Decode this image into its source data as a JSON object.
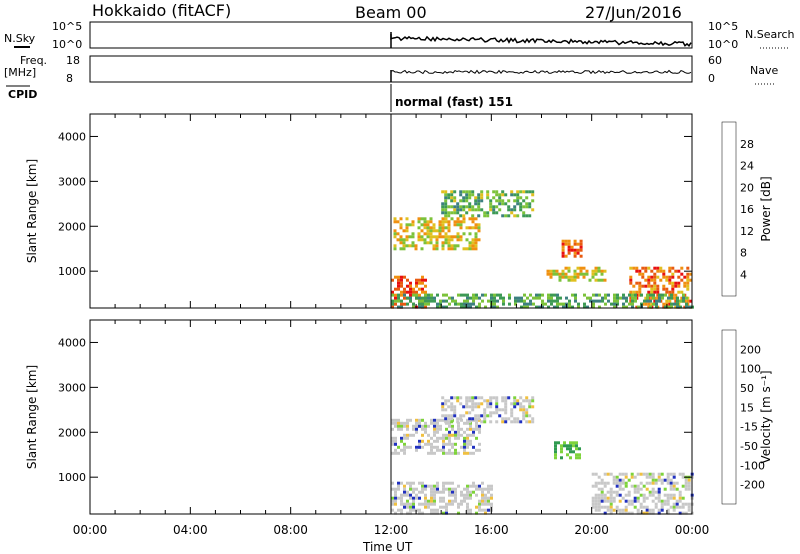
{
  "header": {
    "station": "Hokkaido (fitACF)",
    "beam": "Beam 00",
    "date": "27/Jun/2016"
  },
  "top_panels": {
    "nsky_label": "N.Sky",
    "nsearch_label": "N.Search",
    "noise_ticks_left": [
      "10^5",
      "10^0"
    ],
    "noise_ticks_right": [
      "10^5",
      "10^0"
    ],
    "freq_label_line1": "Freq.",
    "freq_label_line2": "[MHz]",
    "freq_ticks": [
      "18",
      "8"
    ],
    "nave_label": "Nave",
    "nave_ticks": [
      "60",
      "0"
    ],
    "cpid_label": "CPID",
    "cpid_text": "normal (fast) 151"
  },
  "colors": {
    "power_scale": [
      "#0018f0",
      "#2d4fb0",
      "#3d8080",
      "#3d9a55",
      "#7cc23a",
      "#e0c020",
      "#f09010",
      "#e85a10",
      "#e81010"
    ],
    "velocity_scale": [
      "#2030c0",
      "#206080",
      "#2f9a4f",
      "#7ed33a",
      "#c8c8c8",
      "#f0c040",
      "#f0a020",
      "#f07010",
      "#e81010"
    ]
  },
  "chart_data": [
    {
      "type": "heatmap",
      "name": "power",
      "ylabel": "Slant Range [km]",
      "xlabel": "Time UT",
      "yticks": [
        "1000",
        "2000",
        "3000",
        "4000"
      ],
      "ylim": [
        180,
        4500
      ],
      "xlim": [
        0,
        24
      ],
      "xticks": [
        "00:00",
        "04:00",
        "08:00",
        "12:00",
        "16:00",
        "20:00",
        "00:00"
      ],
      "colorbar_label": "Power [dB]",
      "colorbar_ticks": [
        "4",
        "8",
        "12",
        "16",
        "20",
        "24",
        "28"
      ],
      "data_start_hour": 12,
      "echo_regions": [
        {
          "t0": 12.0,
          "t1": 13.4,
          "r0": 200,
          "r1": 900,
          "level": 28
        },
        {
          "t0": 12.1,
          "t1": 15.5,
          "r0": 1500,
          "r1": 2200,
          "level": 20
        },
        {
          "t0": 14.0,
          "t1": 17.6,
          "r0": 2200,
          "r1": 2800,
          "level": 14
        },
        {
          "t0": 18.8,
          "t1": 19.6,
          "r0": 1300,
          "r1": 1700,
          "level": 28
        },
        {
          "t0": 18.2,
          "t1": 20.5,
          "r0": 800,
          "r1": 1100,
          "level": 20
        },
        {
          "t0": 21.5,
          "t1": 24.0,
          "r0": 200,
          "r1": 1100,
          "level": 26
        },
        {
          "t0": 12.0,
          "t1": 24.0,
          "r0": 200,
          "r1": 500,
          "level": 12
        }
      ]
    },
    {
      "type": "heatmap",
      "name": "velocity",
      "ylabel": "Slant Range [km]",
      "xlabel": "Time UT",
      "yticks": [
        "1000",
        "2000",
        "3000",
        "4000"
      ],
      "ylim": [
        180,
        4500
      ],
      "xlim": [
        0,
        24
      ],
      "xticks": [
        "00:00",
        "04:00",
        "08:00",
        "12:00",
        "16:00",
        "20:00",
        "00:00"
      ],
      "colorbar_label": "Velocity [m s⁻¹]",
      "colorbar_ticks": [
        "200",
        "100",
        "50",
        "15",
        "-15",
        "-50",
        "-100",
        "-200"
      ],
      "data_start_hour": 12,
      "echo_regions": [
        {
          "t0": 12.0,
          "t1": 15.5,
          "r0": 1500,
          "r1": 2300,
          "level": 0
        },
        {
          "t0": 14.0,
          "t1": 17.6,
          "r0": 2200,
          "r1": 2800,
          "level": 0
        },
        {
          "t0": 12.0,
          "t1": 16.0,
          "r0": 200,
          "r1": 900,
          "level": 0
        },
        {
          "t0": 18.5,
          "t1": 19.5,
          "r0": 1400,
          "r1": 1800,
          "level": 40
        },
        {
          "t0": 20.0,
          "t1": 24.0,
          "r0": 200,
          "r1": 1100,
          "level": 0
        }
      ]
    }
  ],
  "axis": {
    "xlabel": "Time UT"
  }
}
